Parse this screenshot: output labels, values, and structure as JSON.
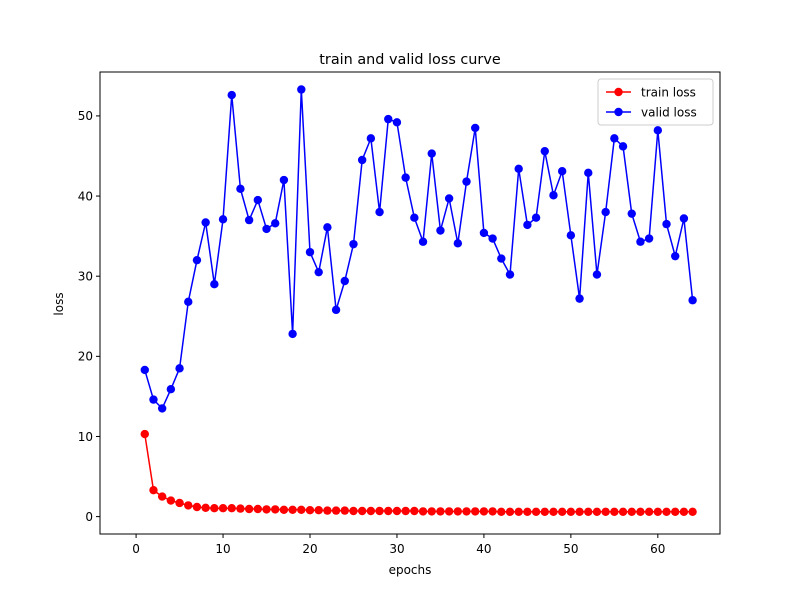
{
  "chart_data": {
    "type": "line",
    "title": "train and valid loss curve",
    "xlabel": "epochs",
    "ylabel": "loss",
    "xlim": [
      -4.15,
      67.15
    ],
    "ylim": [
      -2.17,
      55.48
    ],
    "xticks": [
      0,
      10,
      20,
      30,
      40,
      50,
      60
    ],
    "yticks": [
      0,
      10,
      20,
      30,
      40,
      50
    ],
    "grid": false,
    "legend": "top-right",
    "x": [
      1,
      2,
      3,
      4,
      5,
      6,
      7,
      8,
      9,
      10,
      11,
      12,
      13,
      14,
      15,
      16,
      17,
      18,
      19,
      20,
      21,
      22,
      23,
      24,
      25,
      26,
      27,
      28,
      29,
      30,
      31,
      32,
      33,
      34,
      35,
      36,
      37,
      38,
      39,
      40,
      41,
      42,
      43,
      44,
      45,
      46,
      47,
      48,
      49,
      50,
      51,
      52,
      53,
      54,
      55,
      56,
      57,
      58,
      59,
      60,
      61,
      62,
      63,
      64
    ],
    "series": [
      {
        "name": "train loss",
        "color": "#ff0000",
        "marker": "circle",
        "values": [
          10.3,
          3.3,
          2.5,
          2.0,
          1.7,
          1.4,
          1.2,
          1.1,
          1.05,
          1.05,
          1.05,
          1.0,
          0.95,
          0.95,
          0.9,
          0.9,
          0.85,
          0.85,
          0.85,
          0.8,
          0.8,
          0.75,
          0.75,
          0.75,
          0.7,
          0.7,
          0.7,
          0.7,
          0.7,
          0.7,
          0.7,
          0.7,
          0.65,
          0.65,
          0.65,
          0.65,
          0.65,
          0.65,
          0.65,
          0.65,
          0.65,
          0.6,
          0.6,
          0.6,
          0.6,
          0.6,
          0.6,
          0.6,
          0.6,
          0.6,
          0.6,
          0.6,
          0.6,
          0.6,
          0.6,
          0.6,
          0.6,
          0.6,
          0.6,
          0.6,
          0.6,
          0.6,
          0.6,
          0.6
        ]
      },
      {
        "name": "valid loss",
        "color": "#0000ff",
        "marker": "circle",
        "values": [
          18.3,
          14.6,
          13.5,
          15.9,
          18.5,
          26.8,
          32.0,
          36.7,
          29.0,
          37.1,
          52.6,
          40.9,
          37.0,
          39.5,
          35.9,
          36.6,
          42.0,
          22.8,
          53.3,
          33.0,
          30.5,
          36.1,
          25.8,
          29.4,
          34.0,
          44.5,
          47.2,
          38.0,
          49.6,
          49.2,
          42.3,
          37.3,
          34.3,
          45.3,
          35.7,
          39.7,
          34.1,
          41.8,
          48.5,
          35.4,
          34.7,
          32.2,
          30.2,
          43.4,
          36.4,
          37.3,
          45.6,
          40.1,
          43.1,
          35.1,
          27.2,
          42.9,
          30.2,
          38.0,
          47.2,
          46.2,
          37.8,
          34.3,
          34.7,
          48.2,
          36.5,
          32.5,
          37.2,
          27.0
        ]
      }
    ]
  }
}
